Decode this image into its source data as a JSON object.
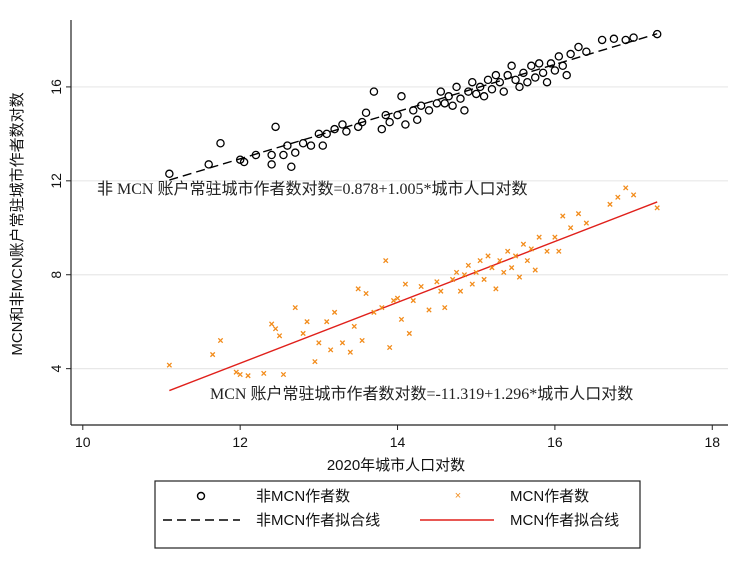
{
  "chart_data": {
    "type": "scatter",
    "xlabel": "2020年城市人口对数",
    "ylabel": "MCN和非MCN账户常驻城市作者数对数",
    "xlim": [
      9.85,
      18.2
    ],
    "ylim": [
      1.6,
      18.85
    ],
    "xticks": [
      10,
      12,
      14,
      16,
      18
    ],
    "yticks": [
      4,
      8,
      12,
      16
    ],
    "grid": "horizontal",
    "legend_position": "bottom",
    "annotations": [
      "非 MCN 账户常驻城市作者数对数=0.878+1.005*城市人口对数",
      "MCN 账户常驻城市作者数对数=-11.319+1.296*城市人口对数"
    ],
    "series": [
      {
        "name": "非MCN作者数",
        "marker": "circle",
        "color": "#000000",
        "points": [
          [
            11.1,
            12.3
          ],
          [
            11.6,
            12.7
          ],
          [
            11.75,
            13.6
          ],
          [
            12.0,
            12.9
          ],
          [
            12.05,
            12.8
          ],
          [
            12.2,
            13.1
          ],
          [
            12.4,
            12.7
          ],
          [
            12.4,
            13.1
          ],
          [
            12.45,
            14.3
          ],
          [
            12.55,
            13.1
          ],
          [
            12.6,
            13.5
          ],
          [
            12.65,
            12.6
          ],
          [
            12.7,
            13.2
          ],
          [
            12.8,
            13.6
          ],
          [
            12.9,
            13.5
          ],
          [
            13.0,
            14.0
          ],
          [
            13.05,
            13.5
          ],
          [
            13.1,
            14.0
          ],
          [
            13.2,
            14.2
          ],
          [
            13.3,
            14.4
          ],
          [
            13.35,
            14.1
          ],
          [
            13.5,
            14.3
          ],
          [
            13.55,
            14.5
          ],
          [
            13.6,
            14.9
          ],
          [
            13.7,
            15.8
          ],
          [
            13.8,
            14.2
          ],
          [
            13.85,
            14.8
          ],
          [
            13.9,
            14.5
          ],
          [
            14.0,
            14.8
          ],
          [
            14.05,
            15.6
          ],
          [
            14.1,
            14.4
          ],
          [
            14.2,
            15.0
          ],
          [
            14.25,
            14.6
          ],
          [
            14.3,
            15.2
          ],
          [
            14.4,
            15.0
          ],
          [
            14.5,
            15.3
          ],
          [
            14.55,
            15.8
          ],
          [
            14.6,
            15.3
          ],
          [
            14.65,
            15.6
          ],
          [
            14.7,
            15.2
          ],
          [
            14.75,
            16.0
          ],
          [
            14.8,
            15.5
          ],
          [
            14.85,
            15.0
          ],
          [
            14.9,
            15.8
          ],
          [
            14.95,
            16.2
          ],
          [
            15.0,
            15.7
          ],
          [
            15.05,
            16.0
          ],
          [
            15.1,
            15.6
          ],
          [
            15.15,
            16.3
          ],
          [
            15.2,
            15.9
          ],
          [
            15.25,
            16.5
          ],
          [
            15.3,
            16.2
          ],
          [
            15.35,
            15.8
          ],
          [
            15.4,
            16.5
          ],
          [
            15.45,
            16.9
          ],
          [
            15.5,
            16.3
          ],
          [
            15.55,
            16.0
          ],
          [
            15.6,
            16.6
          ],
          [
            15.65,
            16.2
          ],
          [
            15.7,
            16.9
          ],
          [
            15.75,
            16.4
          ],
          [
            15.8,
            17.0
          ],
          [
            15.85,
            16.6
          ],
          [
            15.9,
            16.2
          ],
          [
            15.95,
            17.0
          ],
          [
            16.0,
            16.7
          ],
          [
            16.05,
            17.3
          ],
          [
            16.1,
            16.9
          ],
          [
            16.15,
            16.5
          ],
          [
            16.2,
            17.4
          ],
          [
            16.3,
            17.7
          ],
          [
            16.4,
            17.5
          ],
          [
            16.6,
            18.0
          ],
          [
            16.75,
            18.05
          ],
          [
            16.9,
            18.0
          ],
          [
            17.0,
            18.1
          ],
          [
            17.3,
            18.25
          ]
        ]
      },
      {
        "name": "MCN作者数",
        "marker": "x",
        "color": "#f28c1c",
        "points": [
          [
            11.1,
            4.15
          ],
          [
            11.65,
            4.6
          ],
          [
            11.75,
            5.2
          ],
          [
            11.95,
            3.85
          ],
          [
            12.0,
            3.75
          ],
          [
            12.1,
            3.7
          ],
          [
            12.3,
            3.8
          ],
          [
            12.4,
            5.9
          ],
          [
            12.45,
            5.7
          ],
          [
            12.5,
            5.4
          ],
          [
            12.55,
            3.75
          ],
          [
            12.7,
            6.6
          ],
          [
            12.8,
            5.5
          ],
          [
            12.85,
            6.0
          ],
          [
            12.95,
            4.3
          ],
          [
            13.0,
            5.1
          ],
          [
            13.1,
            6.0
          ],
          [
            13.15,
            4.8
          ],
          [
            13.2,
            6.4
          ],
          [
            13.3,
            5.1
          ],
          [
            13.4,
            4.7
          ],
          [
            13.45,
            5.8
          ],
          [
            13.5,
            7.4
          ],
          [
            13.55,
            5.2
          ],
          [
            13.6,
            7.2
          ],
          [
            13.7,
            6.4
          ],
          [
            13.8,
            6.6
          ],
          [
            13.85,
            8.6
          ],
          [
            13.9,
            4.9
          ],
          [
            13.95,
            6.9
          ],
          [
            14.0,
            7.0
          ],
          [
            14.05,
            6.1
          ],
          [
            14.1,
            7.6
          ],
          [
            14.15,
            5.5
          ],
          [
            14.2,
            6.9
          ],
          [
            14.3,
            7.5
          ],
          [
            14.4,
            6.5
          ],
          [
            14.5,
            7.7
          ],
          [
            14.55,
            7.3
          ],
          [
            14.6,
            6.6
          ],
          [
            14.7,
            7.8
          ],
          [
            14.75,
            8.1
          ],
          [
            14.8,
            7.3
          ],
          [
            14.85,
            8.0
          ],
          [
            14.9,
            8.4
          ],
          [
            14.95,
            7.6
          ],
          [
            15.0,
            8.1
          ],
          [
            15.05,
            8.6
          ],
          [
            15.1,
            7.8
          ],
          [
            15.15,
            8.8
          ],
          [
            15.2,
            8.3
          ],
          [
            15.25,
            7.4
          ],
          [
            15.3,
            8.6
          ],
          [
            15.35,
            8.1
          ],
          [
            15.4,
            9.0
          ],
          [
            15.45,
            8.3
          ],
          [
            15.5,
            8.8
          ],
          [
            15.55,
            7.9
          ],
          [
            15.6,
            9.3
          ],
          [
            15.65,
            8.6
          ],
          [
            15.7,
            9.1
          ],
          [
            15.75,
            8.2
          ],
          [
            15.8,
            9.6
          ],
          [
            15.9,
            9.0
          ],
          [
            16.0,
            9.6
          ],
          [
            16.05,
            9.0
          ],
          [
            16.1,
            10.5
          ],
          [
            16.2,
            10.0
          ],
          [
            16.3,
            10.6
          ],
          [
            16.4,
            10.2
          ],
          [
            16.7,
            11.0
          ],
          [
            16.8,
            11.3
          ],
          [
            16.9,
            11.7
          ],
          [
            17.0,
            11.4
          ],
          [
            17.3,
            10.85
          ]
        ]
      },
      {
        "name": "非MCN作者拟合线",
        "type": "line",
        "style": "dashed",
        "color": "#000000",
        "intercept": 0.878,
        "slope": 1.005,
        "x_range": [
          11.1,
          17.3
        ]
      },
      {
        "name": "MCN作者拟合线",
        "type": "line",
        "style": "solid",
        "color": "#e0201b",
        "intercept": -11.319,
        "slope": 1.296,
        "x_range": [
          11.1,
          17.3
        ]
      }
    ]
  }
}
